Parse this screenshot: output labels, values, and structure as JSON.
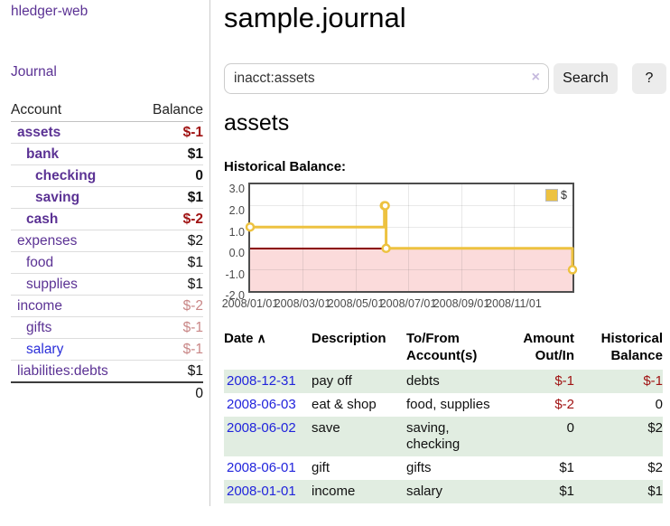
{
  "app": {
    "brand": "hledger-web"
  },
  "colors": {
    "link_purple": "#5b3294",
    "link_blue": "#2124dc",
    "negative_strong": "#a01313",
    "negative_muted": "#c98787",
    "row_green": "#e1ede1",
    "chart_line": "#edc240",
    "chart_negative_region": "#fbdbdb",
    "chart_zero_line": "#8b0000",
    "button_bg": "#ececec"
  },
  "sidebar": {
    "nav_journal": "Journal",
    "accounts": {
      "header_account": "Account",
      "header_balance": "Balance",
      "rows": [
        {
          "name": "assets",
          "balance": "$-1"
        },
        {
          "name": "bank",
          "balance": "$1"
        },
        {
          "name": "checking",
          "balance": "0"
        },
        {
          "name": "saving",
          "balance": "$1"
        },
        {
          "name": "cash",
          "balance": "$-2"
        },
        {
          "name": "expenses",
          "balance": "$2"
        },
        {
          "name": "food",
          "balance": "$1"
        },
        {
          "name": "supplies",
          "balance": "$1"
        },
        {
          "name": "income",
          "balance": "$-2"
        },
        {
          "name": "gifts",
          "balance": "$-1"
        },
        {
          "name": "salary",
          "balance": "$-1"
        },
        {
          "name": "liabilities:debts",
          "balance": "$1"
        }
      ],
      "total": "0"
    }
  },
  "main": {
    "title": "sample.journal",
    "search": {
      "value": "inacct:assets",
      "clear_icon": "×",
      "search_label": "Search",
      "help_label": "?"
    },
    "account_heading": "assets",
    "chart_label": "Historical Balance:",
    "chart_data": {
      "type": "line",
      "step": true,
      "series": [
        {
          "name": "$",
          "x": [
            "2008-01-01",
            "2008-06-01",
            "2008-06-02",
            "2008-06-03",
            "2008-12-31"
          ],
          "values": [
            1,
            2,
            2,
            0,
            -1
          ]
        }
      ],
      "xlim": [
        "2008-01-01",
        "2008-12-31"
      ],
      "ylim": [
        -2.0,
        3.0
      ],
      "yticks": [
        "3.0",
        "2.0",
        "1.0",
        "0.0",
        "-1.0",
        "-2.0"
      ],
      "xticks": [
        "2008/01/01",
        "2008/03/01",
        "2008/05/01",
        "2008/07/01",
        "2008/09/01",
        "2008/11/01"
      ],
      "legend": {
        "label": "$",
        "position": "top-right"
      },
      "line_color": "#edc240",
      "point_fill": "#ffffff",
      "grid": true
    },
    "register": {
      "headers": {
        "date": "Date",
        "sort_icon": "∧",
        "description": "Description",
        "accounts": "To/From Account(s)",
        "amount": "Amount Out/In",
        "balance": "Historical Balance"
      },
      "rows": [
        {
          "date": "2008-12-31",
          "description": "pay off",
          "accounts": "debts",
          "amount": "$-1",
          "balance": "$-1"
        },
        {
          "date": "2008-06-03",
          "description": "eat & shop",
          "accounts": "food, supplies",
          "amount": "$-2",
          "balance": "0"
        },
        {
          "date": "2008-06-02",
          "description": "save",
          "accounts": "saving,\nchecking",
          "amount": "0",
          "balance": "$2"
        },
        {
          "date": "2008-06-01",
          "description": "gift",
          "accounts": "gifts",
          "amount": "$1",
          "balance": "$2"
        },
        {
          "date": "2008-01-01",
          "description": "income",
          "accounts": "salary",
          "amount": "$1",
          "balance": "$1"
        }
      ]
    }
  }
}
